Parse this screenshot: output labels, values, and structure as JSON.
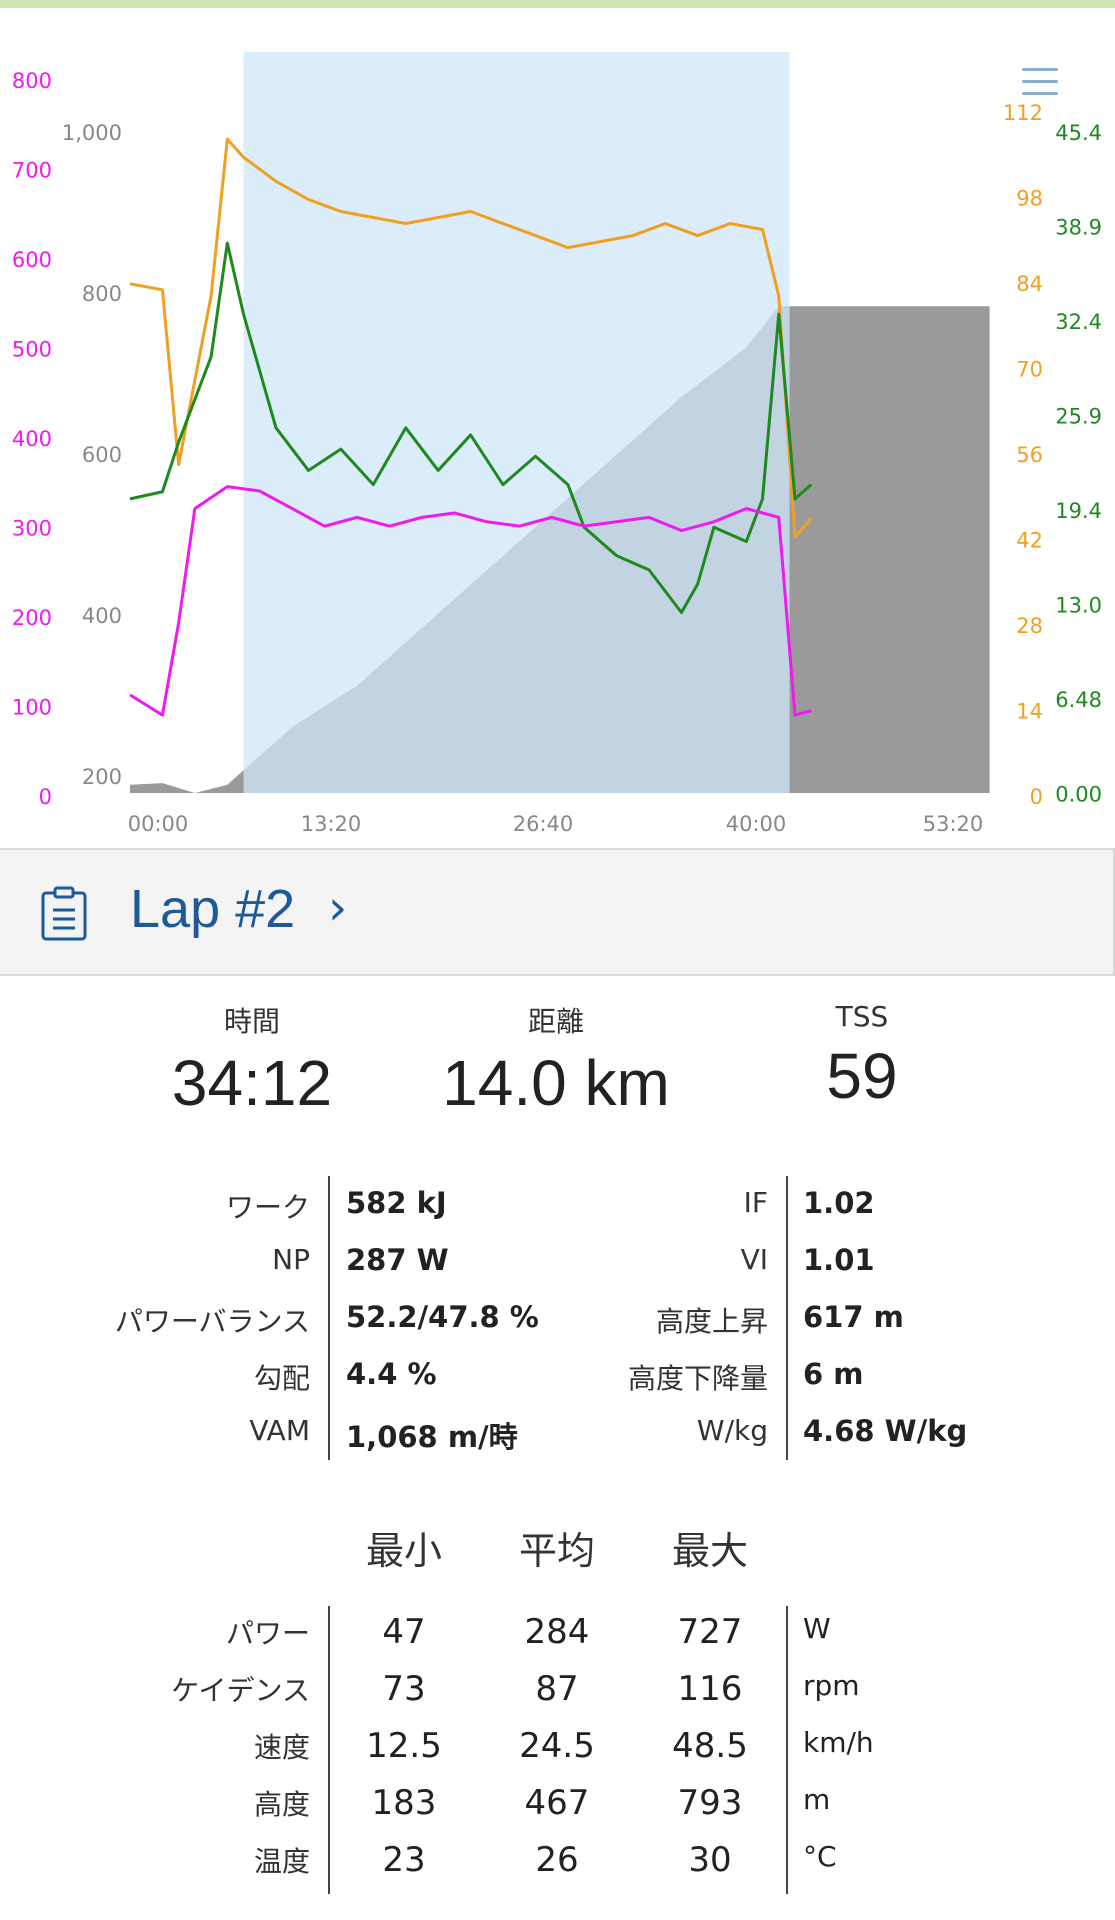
{
  "chart": {
    "axes": {
      "power_ticks": [
        "800",
        "700",
        "600",
        "500",
        "400",
        "300",
        "200",
        "100",
        "0"
      ],
      "elevation_ticks": [
        "1,000",
        "800",
        "600",
        "400",
        "200"
      ],
      "cadence_ticks": [
        "112",
        "98",
        "84",
        "70",
        "56",
        "42",
        "28",
        "14",
        "0"
      ],
      "speed_ticks": [
        "45.4",
        "38.9",
        "32.4",
        "25.9",
        "19.4",
        "13.0",
        "6.48",
        "0.00"
      ],
      "time_ticks": [
        "00:00",
        "13:20",
        "26:40",
        "40:00",
        "53:20"
      ]
    },
    "colors": {
      "power": "#ee1aee",
      "cadence": "#f0a020",
      "speed": "#1e8a1e",
      "elevation": "#9a9a9a",
      "lap_highlight": "#cfe6fa"
    },
    "chart_data": {
      "type": "line",
      "x_unit": "time (mm:ss)",
      "xlim": [
        "00:00",
        "53:20"
      ],
      "lap_range": [
        "07:00",
        "40:40"
      ],
      "series": [
        {
          "axis": "power (0-800)",
          "values": [
            [
              0,
              98
            ],
            [
              2,
              75
            ],
            [
              3,
              180
            ],
            [
              4,
              310
            ],
            [
              6,
              335
            ],
            [
              8,
              330
            ],
            [
              10,
              310
            ],
            [
              12,
              290
            ],
            [
              14,
              300
            ],
            [
              16,
              290
            ],
            [
              18,
              300
            ],
            [
              20,
              305
            ],
            [
              22,
              295
            ],
            [
              24,
              290
            ],
            [
              26,
              300
            ],
            [
              28,
              290
            ],
            [
              30,
              295
            ],
            [
              32,
              300
            ],
            [
              34,
              285
            ],
            [
              36,
              295
            ],
            [
              38,
              310
            ],
            [
              40,
              300
            ],
            [
              41,
              75
            ],
            [
              42,
              80
            ]
          ]
        },
        {
          "axis": "cadence (0-112)",
          "values": [
            [
              0,
              82
            ],
            [
              2,
              81
            ],
            [
              3,
              52
            ],
            [
              5,
              80
            ],
            [
              6,
              106
            ],
            [
              7,
              103
            ],
            [
              9,
              99
            ],
            [
              11,
              96
            ],
            [
              13,
              94
            ],
            [
              15,
              93
            ],
            [
              17,
              92
            ],
            [
              19,
              93
            ],
            [
              21,
              94
            ],
            [
              23,
              92
            ],
            [
              25,
              90
            ],
            [
              27,
              88
            ],
            [
              29,
              89
            ],
            [
              31,
              90
            ],
            [
              33,
              92
            ],
            [
              35,
              90
            ],
            [
              37,
              92
            ],
            [
              39,
              91
            ],
            [
              40,
              80
            ],
            [
              41,
              40
            ],
            [
              42,
              43
            ]
          ]
        },
        {
          "axis": "speed (0-45.4)",
          "values": [
            [
              0,
              20
            ],
            [
              2,
              20.5
            ],
            [
              3,
              24
            ],
            [
              5,
              30
            ],
            [
              6,
              38
            ],
            [
              7,
              33
            ],
            [
              9,
              25
            ],
            [
              11,
              22
            ],
            [
              13,
              23.5
            ],
            [
              15,
              21
            ],
            [
              17,
              25
            ],
            [
              19,
              22
            ],
            [
              21,
              24.5
            ],
            [
              23,
              21
            ],
            [
              25,
              23
            ],
            [
              27,
              21
            ],
            [
              28,
              18
            ],
            [
              30,
              16
            ],
            [
              32,
              15
            ],
            [
              34,
              12
            ],
            [
              35,
              14
            ],
            [
              36,
              18
            ],
            [
              38,
              17
            ],
            [
              39,
              20
            ],
            [
              40,
              33
            ],
            [
              41,
              20
            ],
            [
              42,
              21
            ]
          ]
        },
        {
          "axis": "elevation (200-1,000)",
          "values": [
            [
              0,
              210
            ],
            [
              2,
              212
            ],
            [
              4,
              200
            ],
            [
              6,
              210
            ],
            [
              10,
              280
            ],
            [
              14,
              330
            ],
            [
              18,
              400
            ],
            [
              22,
              470
            ],
            [
              26,
              540
            ],
            [
              30,
              610
            ],
            [
              34,
              680
            ],
            [
              38,
              740
            ],
            [
              40,
              790
            ],
            [
              42,
              790
            ],
            [
              53,
              790
            ]
          ]
        }
      ]
    }
  },
  "lap": {
    "title": "Lap #2",
    "chevron": "›",
    "icon": "clipboard-icon"
  },
  "summary": [
    {
      "label": "時間",
      "value": "34:12"
    },
    {
      "label": "距離",
      "value": "14.0 km"
    },
    {
      "label": "TSS",
      "value": "59"
    }
  ],
  "metrics_left": [
    {
      "label": "ワーク",
      "value": "582 kJ"
    },
    {
      "label": "NP",
      "value": "287 W"
    },
    {
      "label": "パワーバランス",
      "value": "52.2/47.8 %"
    },
    {
      "label": "勾配",
      "value": "4.4 %"
    },
    {
      "label": "VAM",
      "value": "1,068 m/時"
    }
  ],
  "metrics_right": [
    {
      "label": "IF",
      "value": "1.02"
    },
    {
      "label": "VI",
      "value": "1.01"
    },
    {
      "label": "高度上昇",
      "value": "617 m"
    },
    {
      "label": "高度下降量",
      "value": "6 m"
    },
    {
      "label": "W/kg",
      "value": "4.68 W/kg"
    }
  ],
  "stats": {
    "headers": [
      "最小",
      "平均",
      "最大"
    ],
    "rows": [
      {
        "label": "パワー",
        "min": "47",
        "avg": "284",
        "max": "727",
        "unit": "W"
      },
      {
        "label": "ケイデンス",
        "min": "73",
        "avg": "87",
        "max": "116",
        "unit": "rpm"
      },
      {
        "label": "速度",
        "min": "12.5",
        "avg": "24.5",
        "max": "48.5",
        "unit": "km/h"
      },
      {
        "label": "高度",
        "min": "183",
        "avg": "467",
        "max": "793",
        "unit": "m"
      },
      {
        "label": "温度",
        "min": "23",
        "avg": "26",
        "max": "30",
        "unit": "°C"
      }
    ]
  }
}
